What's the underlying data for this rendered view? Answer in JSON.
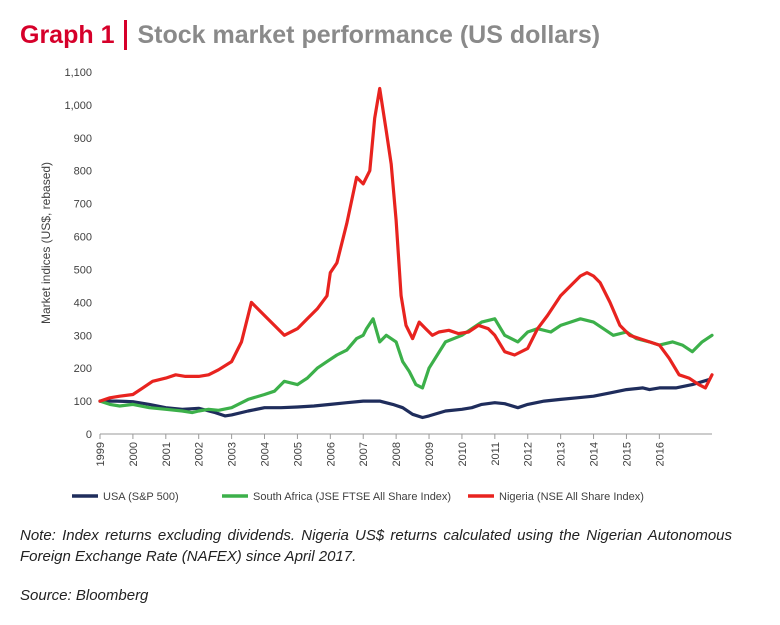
{
  "header": {
    "graph_label": "Graph 1",
    "title": "Stock market performance (US dollars)"
  },
  "chart_data": {
    "type": "line",
    "title": "Stock market performance (US dollars)",
    "xlabel": "",
    "ylabel": "Market indices (US$, rebased)",
    "xlim": [
      1999,
      2017.6
    ],
    "ylim": [
      0,
      1100
    ],
    "ytick_step": 100,
    "yticks": [
      "0",
      "100",
      "200",
      "300",
      "400",
      "500",
      "600",
      "700",
      "800",
      "900",
      "1,000",
      "1,100"
    ],
    "xticks": [
      "1999",
      "2000",
      "2001",
      "2002",
      "2003",
      "2004",
      "2005",
      "2006",
      "2007",
      "2008",
      "2009",
      "2010",
      "2011",
      "2012",
      "2013",
      "2014",
      "2015",
      "2016"
    ],
    "grid": false,
    "legend_position": "bottom",
    "series": [
      {
        "name": "USA (S&P 500)",
        "color": "#1f2d5c",
        "x": [
          1999.0,
          1999.5,
          2000.0,
          2000.5,
          2001.0,
          2001.5,
          2002.0,
          2002.5,
          2002.8,
          2003.0,
          2003.5,
          2004.0,
          2004.5,
          2005.0,
          2005.5,
          2006.0,
          2006.5,
          2007.0,
          2007.5,
          2007.9,
          2008.2,
          2008.5,
          2008.8,
          2009.0,
          2009.5,
          2010.0,
          2010.3,
          2010.6,
          2011.0,
          2011.3,
          2011.7,
          2012.0,
          2012.5,
          2013.0,
          2013.5,
          2014.0,
          2014.5,
          2015.0,
          2015.5,
          2015.7,
          2016.0,
          2016.5,
          2017.0,
          2017.5
        ],
        "y": [
          100,
          100,
          98,
          90,
          80,
          75,
          78,
          65,
          55,
          58,
          70,
          80,
          80,
          82,
          85,
          90,
          95,
          100,
          100,
          90,
          80,
          60,
          50,
          55,
          70,
          75,
          80,
          90,
          95,
          92,
          80,
          90,
          100,
          105,
          110,
          115,
          125,
          135,
          140,
          135,
          140,
          140,
          150,
          165
        ]
      },
      {
        "name": "South Africa (JSE FTSE All Share Index)",
        "color": "#3cb04a",
        "x": [
          1999.0,
          1999.3,
          1999.6,
          2000.0,
          2000.5,
          2001.0,
          2001.5,
          2001.8,
          2002.0,
          2002.3,
          2002.6,
          2003.0,
          2003.5,
          2004.0,
          2004.3,
          2004.6,
          2005.0,
          2005.3,
          2005.6,
          2005.9,
          2006.2,
          2006.5,
          2006.8,
          2007.0,
          2007.1,
          2007.3,
          2007.5,
          2007.7,
          2008.0,
          2008.2,
          2008.4,
          2008.6,
          2008.8,
          2009.0,
          2009.5,
          2010.0,
          2010.3,
          2010.6,
          2011.0,
          2011.3,
          2011.7,
          2012.0,
          2012.3,
          2012.7,
          2013.0,
          2013.3,
          2013.6,
          2014.0,
          2014.3,
          2014.6,
          2015.0,
          2015.3,
          2015.7,
          2016.0,
          2016.4,
          2016.7,
          2017.0,
          2017.3,
          2017.6
        ],
        "y": [
          100,
          90,
          85,
          90,
          80,
          75,
          70,
          65,
          70,
          75,
          72,
          80,
          105,
          120,
          130,
          160,
          150,
          170,
          200,
          220,
          240,
          255,
          290,
          300,
          320,
          350,
          280,
          300,
          280,
          220,
          190,
          150,
          140,
          200,
          280,
          300,
          320,
          340,
          350,
          300,
          280,
          310,
          320,
          310,
          330,
          340,
          350,
          340,
          320,
          300,
          310,
          290,
          280,
          270,
          280,
          270,
          250,
          280,
          300
        ]
      },
      {
        "name": "Nigeria (NSE All Share Index)",
        "color": "#e8231f",
        "x": [
          1999.0,
          1999.3,
          1999.6,
          2000.0,
          2000.3,
          2000.6,
          2001.0,
          2001.3,
          2001.6,
          2002.0,
          2002.3,
          2002.6,
          2003.0,
          2003.3,
          2003.6,
          2004.0,
          2004.3,
          2004.6,
          2005.0,
          2005.3,
          2005.6,
          2005.9,
          2006.0,
          2006.2,
          2006.5,
          2006.8,
          2007.0,
          2007.2,
          2007.35,
          2007.5,
          2007.7,
          2007.85,
          2008.0,
          2008.15,
          2008.3,
          2008.5,
          2008.7,
          2008.9,
          2009.1,
          2009.3,
          2009.6,
          2009.9,
          2010.2,
          2010.5,
          2010.8,
          2011.0,
          2011.3,
          2011.6,
          2012.0,
          2012.3,
          2012.6,
          2013.0,
          2013.3,
          2013.6,
          2013.8,
          2014.0,
          2014.2,
          2014.5,
          2014.8,
          2015.1,
          2015.4,
          2015.7,
          2016.0,
          2016.3,
          2016.6,
          2016.9,
          2017.2,
          2017.4,
          2017.6
        ],
        "y": [
          100,
          110,
          115,
          120,
          140,
          160,
          170,
          180,
          175,
          175,
          180,
          195,
          220,
          280,
          400,
          360,
          330,
          300,
          320,
          350,
          380,
          420,
          490,
          520,
          640,
          780,
          760,
          800,
          960,
          1050,
          920,
          820,
          650,
          420,
          330,
          290,
          340,
          320,
          300,
          310,
          315,
          305,
          310,
          330,
          320,
          300,
          250,
          240,
          260,
          320,
          360,
          420,
          450,
          480,
          490,
          480,
          460,
          400,
          330,
          300,
          290,
          280,
          270,
          230,
          180,
          170,
          150,
          140,
          180
        ]
      }
    ]
  },
  "notes": {
    "note": "Note: Index returns excluding dividends. Nigeria US$ returns calculated using the Nigerian Autonomous Foreign Exchange Rate (NAFEX) since April 2017.",
    "source": "Source: Bloomberg"
  }
}
